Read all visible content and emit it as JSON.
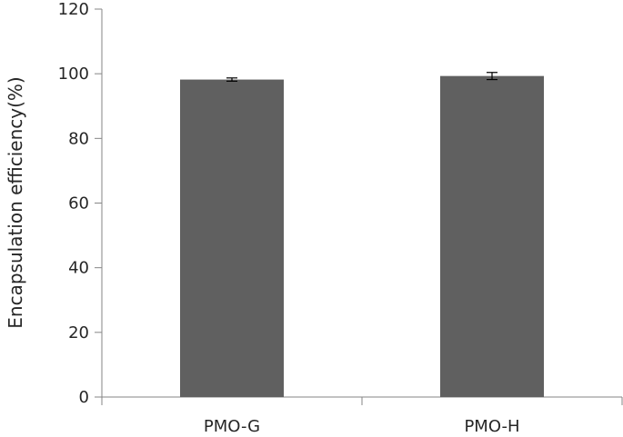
{
  "chart_data": {
    "type": "bar",
    "title": "",
    "xlabel": "",
    "ylabel": "Encapsulation efficiency(%)",
    "categories": [
      "PMO-G",
      "PMO-H"
    ],
    "values": [
      98.2,
      99.3
    ],
    "errors": [
      0.5,
      1.1
    ],
    "ylim": [
      0,
      120
    ],
    "yticks": [
      0,
      20,
      40,
      60,
      80,
      100,
      120
    ],
    "grid": false,
    "legend": null,
    "bar_color": "#606060"
  }
}
